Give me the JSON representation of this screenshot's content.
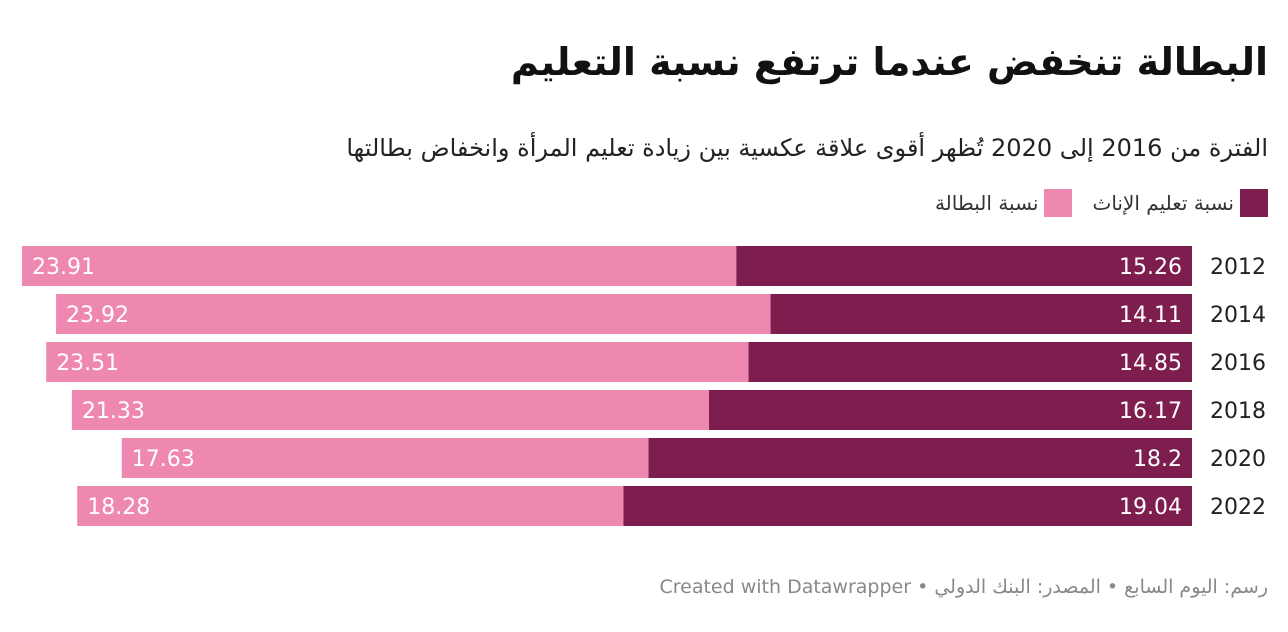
{
  "title": "البطالة تنخفض عندما ترتفع نسبة التعليم",
  "subtitle": "الفترة من 2016 إلى 2020 تُظهر أقوى علاقة عكسية بين زيادة تعليم المرأة وانخفاض بطالتها",
  "footer": "رسم: اليوم السابع • المصدر: البنك الدولي • Created with Datawrapper",
  "colors": {
    "education": "#7d1e4e",
    "unemployment": "#ef88b0",
    "bar_label": "#ffffff"
  },
  "chart_data": {
    "type": "bar",
    "orientation": "horizontal",
    "stacked": true,
    "direction": "right-to-left",
    "categories": [
      "2012",
      "2014",
      "2016",
      "2018",
      "2020",
      "2022"
    ],
    "series": [
      {
        "name": "نسبة تعليم الإناث",
        "color": "#7d1e4e",
        "values": [
          15.26,
          14.11,
          14.85,
          16.17,
          18.2,
          19.04
        ]
      },
      {
        "name": "نسبة البطالة",
        "color": "#ef88b0",
        "values": [
          23.91,
          23.92,
          23.51,
          21.33,
          17.63,
          18.28
        ]
      }
    ],
    "legend": "top-right",
    "grid": false
  }
}
